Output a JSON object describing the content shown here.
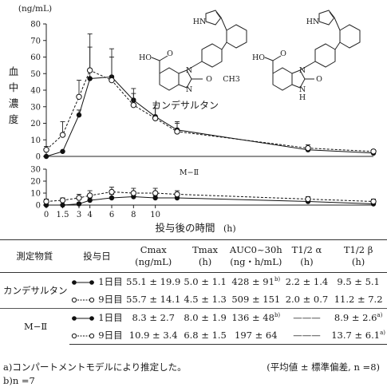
{
  "chart_data": [
    {
      "type": "line",
      "ylabel": "血中濃度",
      "yunit": "(ng/mL)",
      "xlabel": "投与後の時間",
      "xlabel_unit": "(h)",
      "x_ticks": [
        "0",
        "1.5",
        "3",
        "4",
        "6",
        "8",
        "10"
      ],
      "ylim": [
        0,
        80
      ],
      "y_ticks": [
        "0",
        "10",
        "20",
        "30",
        "40",
        "50",
        "60",
        "70",
        "80"
      ],
      "compound_label": "カンデサルタン",
      "series": [
        {
          "name": "1日目",
          "marker": "filled",
          "x": [
            0,
            1.5,
            3,
            4,
            6,
            8,
            10,
            12,
            24,
            30
          ],
          "y": [
            0,
            3,
            25,
            47,
            48,
            34,
            24,
            16,
            4,
            2
          ],
          "err": [
            0,
            0,
            3,
            19,
            17,
            7,
            7,
            5,
            2,
            1
          ]
        },
        {
          "name": "9日目",
          "marker": "open",
          "x": [
            0,
            1.5,
            3,
            4,
            6,
            8,
            10,
            12,
            24,
            30
          ],
          "y": [
            4,
            13,
            36,
            52,
            46,
            31,
            23,
            15,
            5,
            3
          ],
          "err": [
            2,
            8,
            10,
            22,
            14,
            7,
            6,
            5,
            2,
            1
          ]
        }
      ]
    },
    {
      "type": "line",
      "ylim": [
        0,
        30
      ],
      "y_ticks": [
        "0",
        "10",
        "20",
        "30"
      ],
      "compound_label": "M−Ⅱ",
      "series": [
        {
          "name": "1日目",
          "marker": "filled",
          "x": [
            0,
            1.5,
            3,
            4,
            6,
            8,
            10,
            12,
            24,
            30
          ],
          "y": [
            0,
            0,
            1,
            4,
            6,
            7,
            6,
            6,
            3,
            1
          ],
          "err": [
            0,
            0,
            1,
            2,
            3,
            3,
            2,
            2,
            2,
            1
          ]
        },
        {
          "name": "9日目",
          "marker": "open",
          "x": [
            0,
            1.5,
            3,
            4,
            6,
            8,
            10,
            12,
            24,
            30
          ],
          "y": [
            3,
            4,
            6,
            8,
            11,
            10,
            10,
            9,
            5,
            3
          ],
          "err": [
            2,
            2,
            3,
            4,
            4,
            4,
            4,
            3,
            2,
            2
          ]
        }
      ]
    }
  ],
  "structures": {
    "candesartan": {
      "oh": "HO",
      "o": "O",
      "chain": "O",
      "ch3": "CH3",
      "n_left": "N",
      "n_right": "N",
      "nh": "HN"
    },
    "m2": {
      "oh": "HO",
      "o": "O",
      "oxo": "O",
      "n": "N",
      "nh_ring": "N",
      "h_ring": "H",
      "nh": "HN"
    }
  },
  "table": {
    "headers": {
      "compound": "測定物質",
      "day": "投与日",
      "cmax": "Cmax",
      "cmax_unit": "(ng/mL)",
      "tmax": "Tmax",
      "tmax_unit": "(h)",
      "auc": "AUC0~30h",
      "auc_unit": "(ng・h/mL)",
      "t12a": "T1/2 α",
      "t12a_unit": "(h)",
      "t12b": "T1/2 β",
      "t12b_unit": "(h)"
    },
    "groups": [
      {
        "compound": "カンデサルタン",
        "rows": [
          {
            "marker": "filled",
            "day": "1日目",
            "cmax": "55.1 ± 19.9",
            "tmax": "5.0 ± 1.1",
            "auc": "428 ± 91",
            "auc_note": "b)",
            "t12a": "2.2 ± 1.4",
            "t12b": "9.5 ± 5.1",
            "t12b_note": ""
          },
          {
            "marker": "open",
            "day": "9日目",
            "cmax": "55.7 ± 14.1",
            "tmax": "4.5 ± 1.3",
            "auc": "509 ± 151",
            "auc_note": "",
            "t12a": "2.0 ± 0.7",
            "t12b": "11.2 ± 7.2",
            "t12b_note": ""
          }
        ]
      },
      {
        "compound": "M−Ⅱ",
        "rows": [
          {
            "marker": "filled",
            "day": "1日目",
            "cmax": "8.3 ± 2.7",
            "tmax": "8.0 ± 1.9",
            "auc": "136 ± 48",
            "auc_note": "b)",
            "t12a": "———",
            "t12b": "8.9 ± 2.6",
            "t12b_note": "a)"
          },
          {
            "marker": "open",
            "day": "9日目",
            "cmax": "10.9 ± 3.4",
            "tmax": "6.8 ± 1.5",
            "auc": "197 ± 64",
            "auc_note": "",
            "t12a": "———",
            "t12b": "13.7 ± 6.1",
            "t12b_note": "a)"
          }
        ]
      }
    ]
  },
  "footnotes": {
    "a": "a)コンパートメントモデルにより推定した。",
    "stats": "(平均値 ± 標準偏差, n =8)",
    "b": "b)n =7"
  }
}
